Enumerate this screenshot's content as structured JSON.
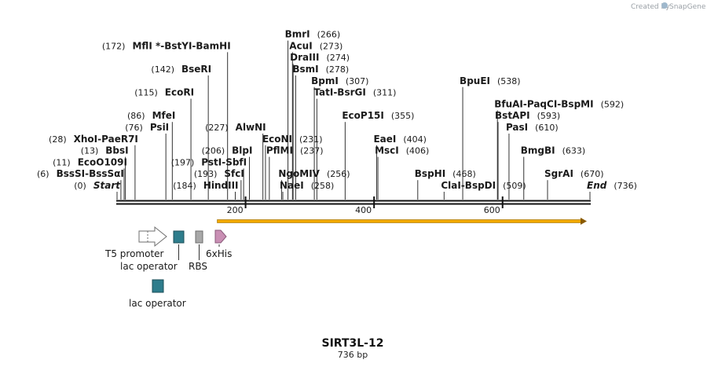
{
  "credit": {
    "prefix": "Created by",
    "brand": "SnapGene"
  },
  "map": {
    "name": "SIRT3L-12",
    "length_label": "736 bp",
    "length": 736,
    "ruler_ticks": [
      {
        "bp": 200,
        "label": "200"
      },
      {
        "bp": 400,
        "label": "400"
      },
      {
        "bp": 600,
        "label": "600"
      }
    ]
  },
  "sites": [
    {
      "row": 14,
      "pos": 266,
      "parts": [
        {
          "text": "BmrI"
        }
      ],
      "pos_label": "(266)"
    },
    {
      "row": 13,
      "pos": 273,
      "parts": [
        {
          "text": "AcuI"
        }
      ],
      "pos_label": "(273)"
    },
    {
      "row": 12,
      "pos": 274,
      "parts": [
        {
          "text": "DraIII"
        }
      ],
      "pos_label": "(274)"
    },
    {
      "row": 11,
      "pos": 278,
      "parts": [
        {
          "text": "BsmI"
        }
      ],
      "pos_label": "(278)"
    },
    {
      "row": 10,
      "pos": 307,
      "parts": [
        {
          "text": "BpmI"
        }
      ],
      "pos_label": "(307)"
    },
    {
      "row": 9,
      "pos": 311,
      "parts": [
        {
          "text": "TatI"
        },
        {
          "text": "BsrGI"
        }
      ],
      "pos_label": "(311)"
    },
    {
      "row": 7,
      "pos": 355,
      "parts": [
        {
          "text": "EcoP15I"
        }
      ],
      "pos_label": "(355)"
    },
    {
      "row": 5,
      "pos": 231,
      "parts": [
        {
          "text": "EcoNI"
        }
      ],
      "pos_label": "(231)"
    },
    {
      "row": 4,
      "pos": 237,
      "parts": [
        {
          "text": "PflMI"
        }
      ],
      "pos_label": "(237)"
    },
    {
      "row": 2,
      "pos": 256,
      "parts": [
        {
          "text": "NgoMIV"
        }
      ],
      "pos_label": "(256)"
    },
    {
      "row": 1,
      "pos": 258,
      "parts": [
        {
          "text": "NaeI"
        }
      ],
      "pos_label": "(258)"
    },
    {
      "row": 5,
      "pos": 404,
      "parts": [
        {
          "text": "EaeI"
        }
      ],
      "pos_label": "(404)"
    },
    {
      "row": 4,
      "pos": 406,
      "parts": [
        {
          "text": "MscI"
        }
      ],
      "pos_label": "(406)"
    },
    {
      "row": 2,
      "pos": 468,
      "parts": [
        {
          "text": "BspHI"
        }
      ],
      "pos_label": "(468)"
    },
    {
      "row": 10,
      "pos": 538,
      "parts": [
        {
          "text": "BpuEI"
        }
      ],
      "pos_label": "(538)"
    },
    {
      "row": 8,
      "pos": 592,
      "parts": [
        {
          "text": "BfuAI"
        },
        {
          "text": "PaqCI"
        },
        {
          "text": "BspMI"
        }
      ],
      "pos_label": "(592)"
    },
    {
      "row": 7,
      "pos": 593,
      "parts": [
        {
          "text": "BstAPI"
        }
      ],
      "pos_label": "(593)"
    },
    {
      "row": 6,
      "pos": 610,
      "parts": [
        {
          "text": "PasI"
        }
      ],
      "pos_label": "(610)"
    },
    {
      "row": 4,
      "pos": 633,
      "parts": [
        {
          "text": "BmgBI"
        }
      ],
      "pos_label": "(633)"
    },
    {
      "row": 2,
      "pos": 670,
      "parts": [
        {
          "text": "SgrAI"
        }
      ],
      "pos_label": "(670)"
    },
    {
      "row": 1,
      "pos": 509,
      "parts": [
        {
          "text": "ClaI"
        },
        {
          "text": "BspDI"
        }
      ],
      "pos_label": "(509)"
    },
    {
      "row": 1,
      "pos": 736,
      "parts": [
        {
          "text": "End",
          "italic": true
        }
      ],
      "pos_label": "(736)"
    },
    {
      "row": 13,
      "pos": 172,
      "parts": [
        {
          "text": "MflI *"
        },
        {
          "text": "BstYI"
        },
        {
          "text": "BamHI"
        }
      ],
      "pos_label": "(172)",
      "label_left": true
    },
    {
      "row": 11,
      "pos": 142,
      "parts": [
        {
          "text": "BseRI"
        }
      ],
      "pos_label": "(142)",
      "label_left": true
    },
    {
      "row": 9,
      "pos": 115,
      "parts": [
        {
          "text": "EcoRI"
        }
      ],
      "pos_label": "(115)",
      "label_left": true
    },
    {
      "row": 7,
      "pos": 86,
      "parts": [
        {
          "text": "MfeI"
        }
      ],
      "pos_label": "(86)",
      "label_left": true
    },
    {
      "row": 6,
      "pos": 76,
      "parts": [
        {
          "text": "PsiI"
        }
      ],
      "pos_label": "(76)",
      "label_left": true
    },
    {
      "row": 6,
      "pos": 227,
      "parts": [
        {
          "text": "AlwNI"
        }
      ],
      "pos_label": "(227)",
      "label_left": true
    },
    {
      "row": 5,
      "pos": 28,
      "parts": [
        {
          "text": "XhoI"
        },
        {
          "text": "PaeR7I"
        }
      ],
      "pos_label": "(28)",
      "label_left": true
    },
    {
      "row": 4,
      "pos": 13,
      "parts": [
        {
          "text": "BbsI"
        }
      ],
      "pos_label": "(13)",
      "label_left": true
    },
    {
      "row": 4,
      "pos": 206,
      "parts": [
        {
          "text": "BlpI"
        }
      ],
      "pos_label": "(206)",
      "label_left": true
    },
    {
      "row": 3,
      "pos": 11,
      "parts": [
        {
          "text": "EcoO109I"
        }
      ],
      "pos_label": "(11)",
      "label_left": true
    },
    {
      "row": 3,
      "pos": 197,
      "parts": [
        {
          "text": "PstI"
        },
        {
          "text": "SbfI"
        }
      ],
      "pos_label": "(197)",
      "label_left": true
    },
    {
      "row": 2,
      "pos": 6,
      "parts": [
        {
          "text": "BssSI"
        },
        {
          "text": "BssSαI"
        }
      ],
      "pos_label": "(6)",
      "label_left": true
    },
    {
      "row": 2,
      "pos": 193,
      "parts": [
        {
          "text": "SfcI"
        }
      ],
      "pos_label": "(193)",
      "label_left": true
    },
    {
      "row": 1,
      "pos": 0,
      "parts": [
        {
          "text": "Start",
          "italic": true
        }
      ],
      "pos_label": "(0)",
      "label_left": true
    },
    {
      "row": 1,
      "pos": 184,
      "parts": [
        {
          "text": "HindIII"
        }
      ],
      "pos_label": "(184)",
      "label_left": true
    }
  ],
  "orf": {
    "start": 140,
    "end": 736,
    "color": "#f2a900",
    "direction": "forward"
  },
  "features": [
    {
      "name": "T5 promoter",
      "type": "promoter",
      "color": "#ffffff"
    },
    {
      "name": "lac operator",
      "type": "operator",
      "color": "#2e7d8c"
    },
    {
      "name": "RBS",
      "type": "rbs",
      "color": "#a8a8a8"
    },
    {
      "name": "6xHis",
      "type": "tag",
      "color": "#c98fb4"
    },
    {
      "name": "lac operator",
      "type": "operator",
      "color": "#2e7d8c"
    }
  ]
}
